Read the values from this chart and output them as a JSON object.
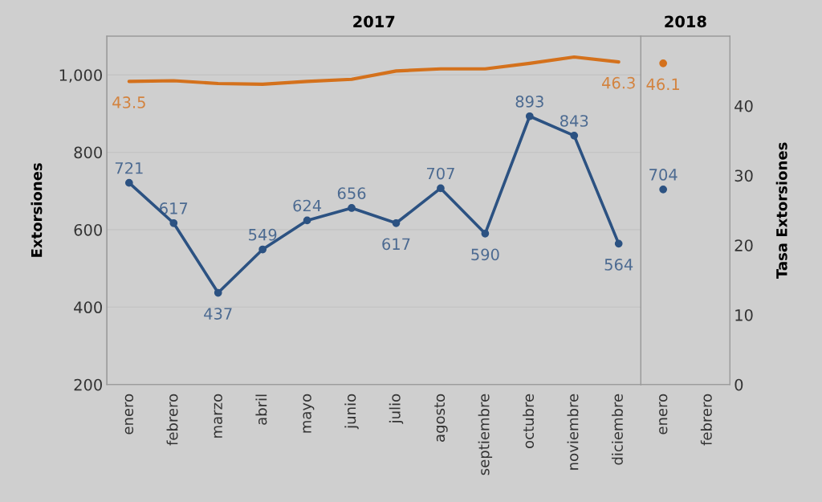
{
  "chart_data": [
    {
      "type": "line",
      "title": "2017",
      "ylabel": "Extorsiones",
      "categories": [
        "enero",
        "febrero",
        "marzo",
        "abril",
        "mayo",
        "junio",
        "julio",
        "agosto",
        "septiembre",
        "octubre",
        "noviembre",
        "diciembre"
      ],
      "ylim": [
        200,
        1100
      ],
      "yticks": [
        {
          "value": 200,
          "label": "200"
        },
        {
          "value": 400,
          "label": "400"
        },
        {
          "value": 600,
          "label": "600"
        },
        {
          "value": 800,
          "label": "800"
        },
        {
          "value": 1000,
          "label": "1,000"
        }
      ],
      "y2lim": [
        0,
        50
      ],
      "grid": "y",
      "tick_labels": [
        "x",
        "y"
      ],
      "series": [
        {
          "color": "#2c5282",
          "marker": "circle",
          "values": [
            721,
            617,
            437,
            549,
            624,
            656,
            617,
            707,
            590,
            893,
            843,
            564
          ],
          "value_labels": [
            "721",
            "617",
            "437",
            "549",
            "624",
            "656",
            "617",
            "707",
            "590",
            "893",
            "843",
            "564"
          ]
        },
        {
          "color": "#d4711c",
          "marker": "none",
          "axis": "y2",
          "values": [
            43.5,
            43.6,
            43.2,
            43.1,
            43.5,
            43.8,
            45.0,
            45.3,
            45.3,
            46.1,
            47.0,
            46.3
          ],
          "value_labels": [
            "43.5",
            null,
            null,
            null,
            null,
            null,
            null,
            null,
            null,
            null,
            null,
            "46.3"
          ]
        }
      ]
    },
    {
      "type": "line",
      "title": "2018",
      "y2label": "Tasa Extorsiones",
      "categories": [
        "enero",
        "febrero"
      ],
      "ylim": [
        200,
        1100
      ],
      "y2lim": [
        0,
        50
      ],
      "y2ticks": [
        0,
        10,
        20,
        30,
        40
      ],
      "grid": "y",
      "tick_labels": [
        "x",
        "y2"
      ],
      "series": [
        {
          "color": "#2c5282",
          "marker": "circle",
          "values": [
            704,
            null
          ],
          "value_labels": [
            "704",
            null
          ]
        },
        {
          "color": "#d4711c",
          "marker": "circle",
          "axis": "y2",
          "values": [
            46.1,
            null
          ],
          "value_labels": [
            "46.1",
            null
          ]
        }
      ]
    }
  ]
}
